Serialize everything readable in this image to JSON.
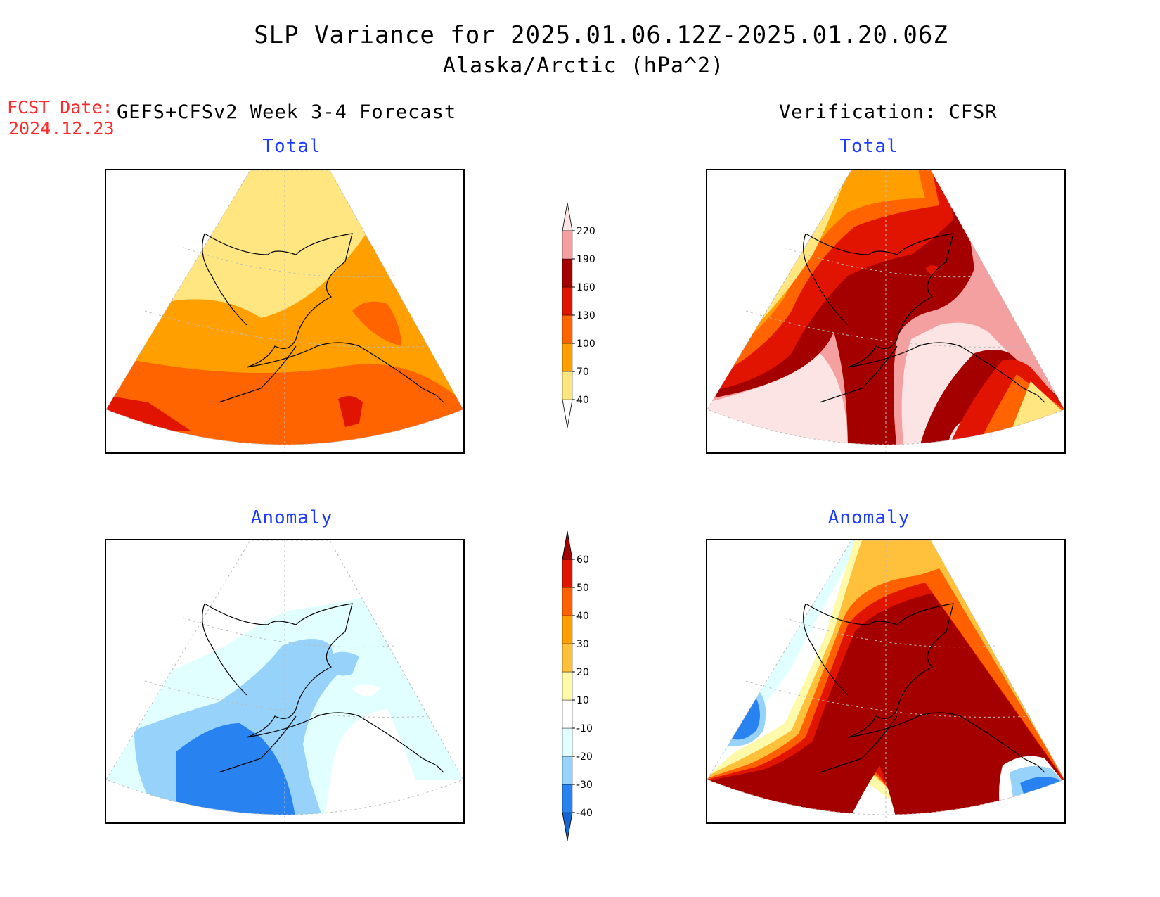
{
  "title": {
    "line1": "SLP Variance for 2025.01.06.12Z-2025.01.20.06Z",
    "line2": "Alaska/Arctic (hPa^2)"
  },
  "forecast_date": {
    "label": "FCST Date:",
    "value": "2024.12.23"
  },
  "columns": {
    "left": "GEFS+CFSv2 Week 3-4 Forecast",
    "right": "Verification: CFSR"
  },
  "panels": {
    "total_forecast_label": "Total",
    "total_verification_label": "Total",
    "anomaly_forecast_label": "Anomaly",
    "anomaly_verification_label": "Anomaly"
  },
  "colorbars": {
    "total": {
      "levels": [
        "40",
        "70",
        "100",
        "130",
        "160",
        "190",
        "220"
      ],
      "colors": [
        "#ffffff",
        "#ffe680",
        "#ffa000",
        "#ff6400",
        "#e01400",
        "#a50000",
        "#f4a0a0",
        "#fce4e4"
      ]
    },
    "anomaly": {
      "levels": [
        "-40",
        "-30",
        "-20",
        "-10",
        "10",
        "20",
        "30",
        "40",
        "50",
        "60"
      ],
      "colors": [
        "#1464d2",
        "#2882f0",
        "#96d2fa",
        "#e1ffff",
        "#ffffff",
        "#fffaaa",
        "#ffc03c",
        "#ffa000",
        "#ff6000",
        "#e11400",
        "#a50000"
      ]
    }
  },
  "palette": {
    "yellow": "#ffe680",
    "orange": "#ffa000",
    "dark_orange": "#ff6400",
    "red": "#e01400",
    "dark_red": "#a50000",
    "pink": "#f4a0a0",
    "light_pink": "#fce4e4",
    "light_cyan": "#e1ffff",
    "light_blue": "#96d2fa",
    "blue": "#2882f0",
    "deep_blue": "#1464d2",
    "pale_yellow": "#fffaaa",
    "light_orange": "#ffc03c",
    "title_blue": "#1e3cff",
    "fcst_red": "#ff2a2a"
  }
}
